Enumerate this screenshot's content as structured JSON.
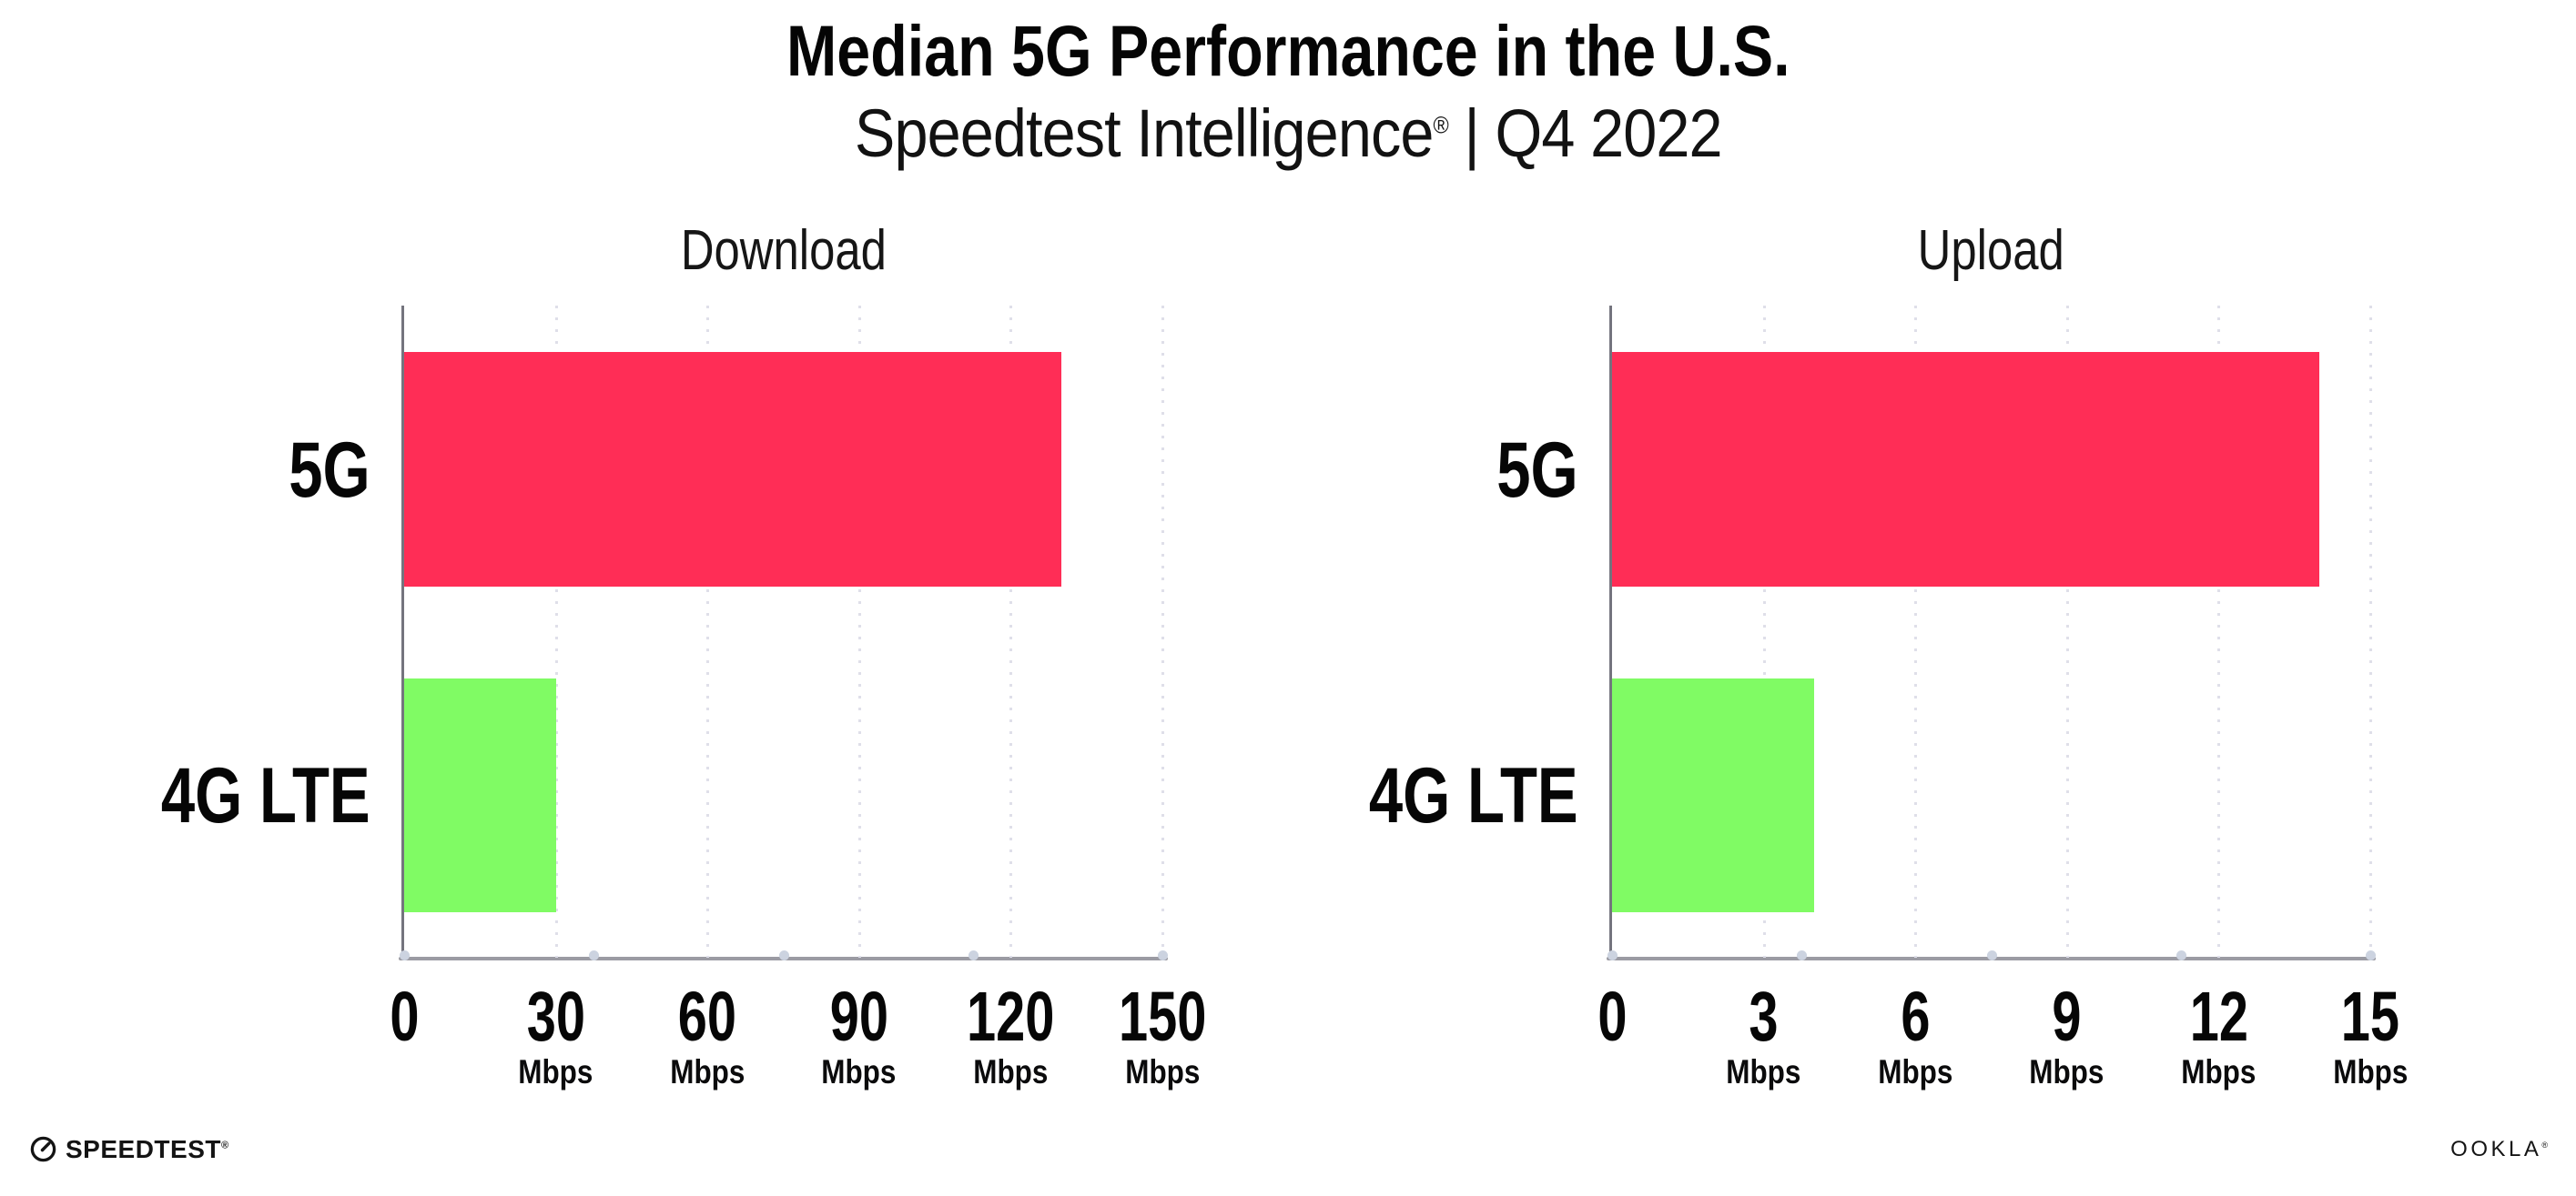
{
  "header": {
    "title": "Median 5G Performance in the U.S.",
    "subtitle_brand": "Speedtest Intelligence",
    "subtitle_trademark": "®",
    "subtitle_rest": " | Q4 2022"
  },
  "chart_data": [
    {
      "type": "bar",
      "orientation": "horizontal",
      "title": "Download",
      "categories": [
        "5G",
        "4G LTE"
      ],
      "values": [
        130,
        30
      ],
      "unit": "Mbps",
      "xlim": [
        0,
        150
      ],
      "xticks": [
        0,
        30,
        60,
        90,
        120,
        150
      ],
      "bar_colors": [
        "#FF2D56",
        "#80FB64"
      ],
      "grid": "dotted-vertical",
      "legend": "none"
    },
    {
      "type": "bar",
      "orientation": "horizontal",
      "title": "Upload",
      "categories": [
        "5G",
        "4G LTE"
      ],
      "values": [
        14,
        4
      ],
      "unit": "Mbps",
      "xlim": [
        0,
        15
      ],
      "xticks": [
        0,
        3,
        6,
        9,
        12,
        15
      ],
      "bar_colors": [
        "#FF2D56",
        "#80FB64"
      ],
      "grid": "dotted-vertical",
      "legend": "none"
    }
  ],
  "footer": {
    "speedtest_label": "SPEEDTEST",
    "speedtest_mark": "®",
    "ookla_label": "OOKLA",
    "ookla_mark": "®"
  },
  "colors": {
    "bar_5g": "#FF2D56",
    "bar_4g": "#80FB64",
    "x_axis": "#9B9BA3",
    "y_axis": "#74747E",
    "gridline_dot": "#DFDFE9",
    "axis_node_dot": "#CCD3E0",
    "text": "#0B0B0C"
  }
}
